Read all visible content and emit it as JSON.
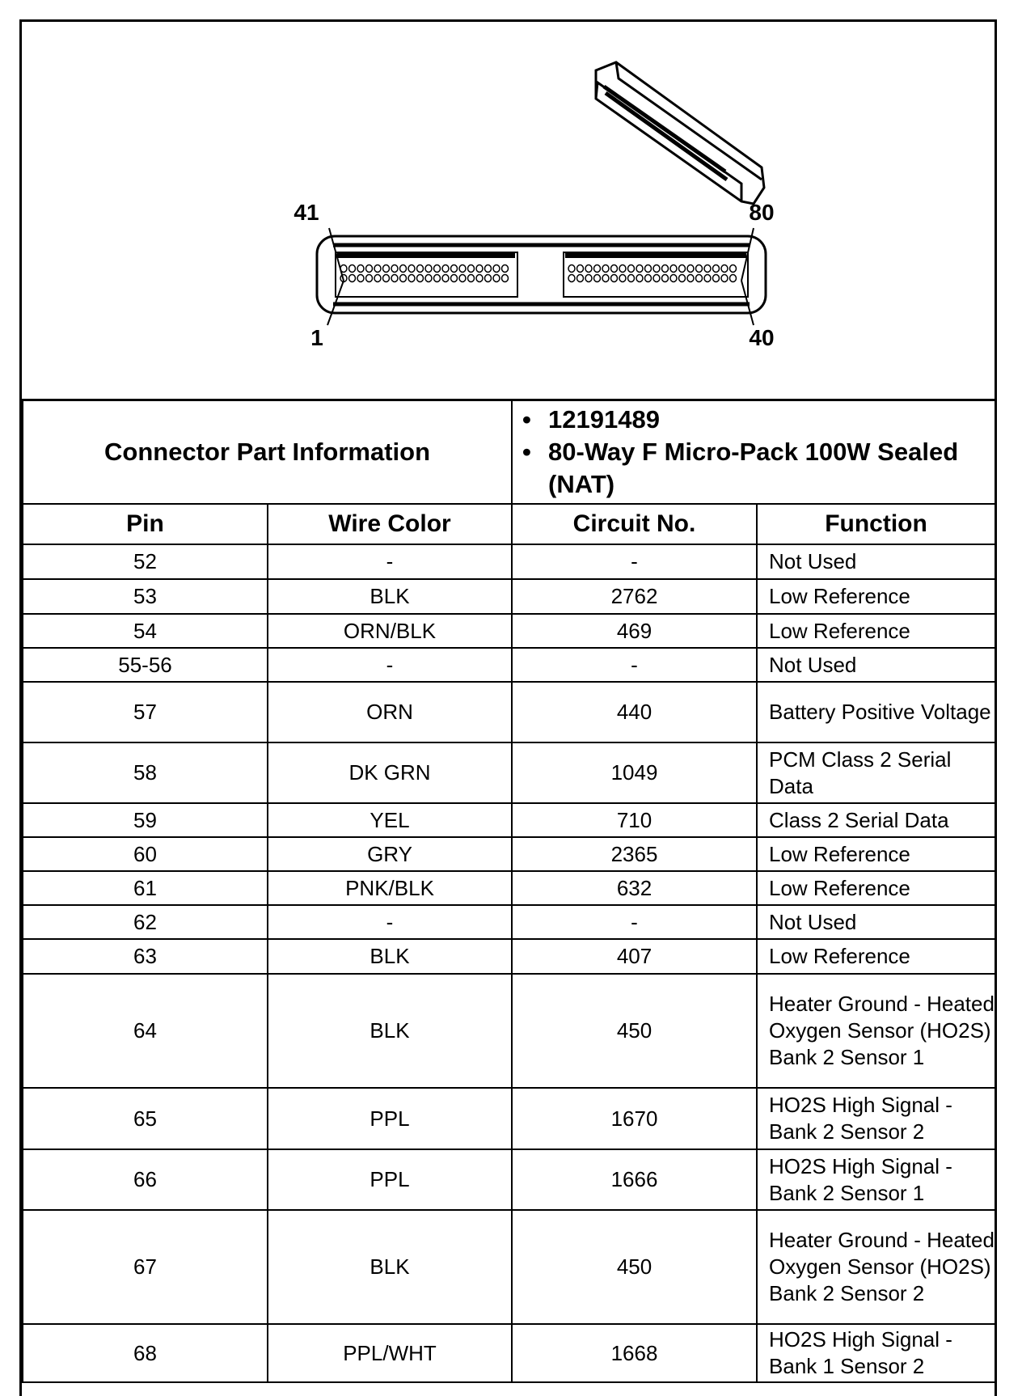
{
  "figure": {
    "pin_labels": {
      "top_left": "41",
      "top_right": "80",
      "bottom_left": "1",
      "bottom_right": "40"
    }
  },
  "connector_info": {
    "label": "Connector Part Information",
    "items": [
      "12191489",
      "80-Way F Micro-Pack 100W Sealed (NAT)"
    ]
  },
  "table": {
    "headers": [
      "Pin",
      "Wire Color",
      "Circuit No.",
      "Function"
    ],
    "rows": [
      {
        "pin": "52",
        "wire": "-",
        "circuit": "-",
        "function": "Not Used"
      },
      {
        "pin": "53",
        "wire": "BLK",
        "circuit": "2762",
        "function": "Low Reference"
      },
      {
        "pin": "54",
        "wire": "ORN/BLK",
        "circuit": "469",
        "function": "Low Reference"
      },
      {
        "pin": "55-56",
        "wire": "-",
        "circuit": "-",
        "function": "Not Used"
      },
      {
        "pin": "57",
        "wire": "ORN",
        "circuit": "440",
        "function": "Battery Positive Voltage"
      },
      {
        "pin": "58",
        "wire": "DK GRN",
        "circuit": "1049",
        "function": "PCM Class 2 Serial Data"
      },
      {
        "pin": "59",
        "wire": "YEL",
        "circuit": "710",
        "function": "Class 2 Serial Data"
      },
      {
        "pin": "60",
        "wire": "GRY",
        "circuit": "2365",
        "function": "Low Reference"
      },
      {
        "pin": "61",
        "wire": "PNK/BLK",
        "circuit": "632",
        "function": "Low Reference"
      },
      {
        "pin": "62",
        "wire": "-",
        "circuit": "-",
        "function": "Not Used"
      },
      {
        "pin": "63",
        "wire": "BLK",
        "circuit": "407",
        "function": "Low Reference"
      },
      {
        "pin": "64",
        "wire": "BLK",
        "circuit": "450",
        "function": "Heater Ground - Heated Oxygen Sensor (HO2S) Bank 2 Sensor 1"
      },
      {
        "pin": "65",
        "wire": "PPL",
        "circuit": "1670",
        "function": "HO2S High Signal - Bank 2 Sensor 2"
      },
      {
        "pin": "66",
        "wire": "PPL",
        "circuit": "1666",
        "function": "HO2S High Signal - Bank 2 Sensor 1"
      },
      {
        "pin": "67",
        "wire": "BLK",
        "circuit": "450",
        "function": "Heater Ground - Heated Oxygen Sensor (HO2S) Bank 2 Sensor 2"
      },
      {
        "pin": "68",
        "wire": "PPL/WHT",
        "circuit": "1668",
        "function": "HO2S High Signal - Bank 1 Sensor 2"
      }
    ]
  }
}
